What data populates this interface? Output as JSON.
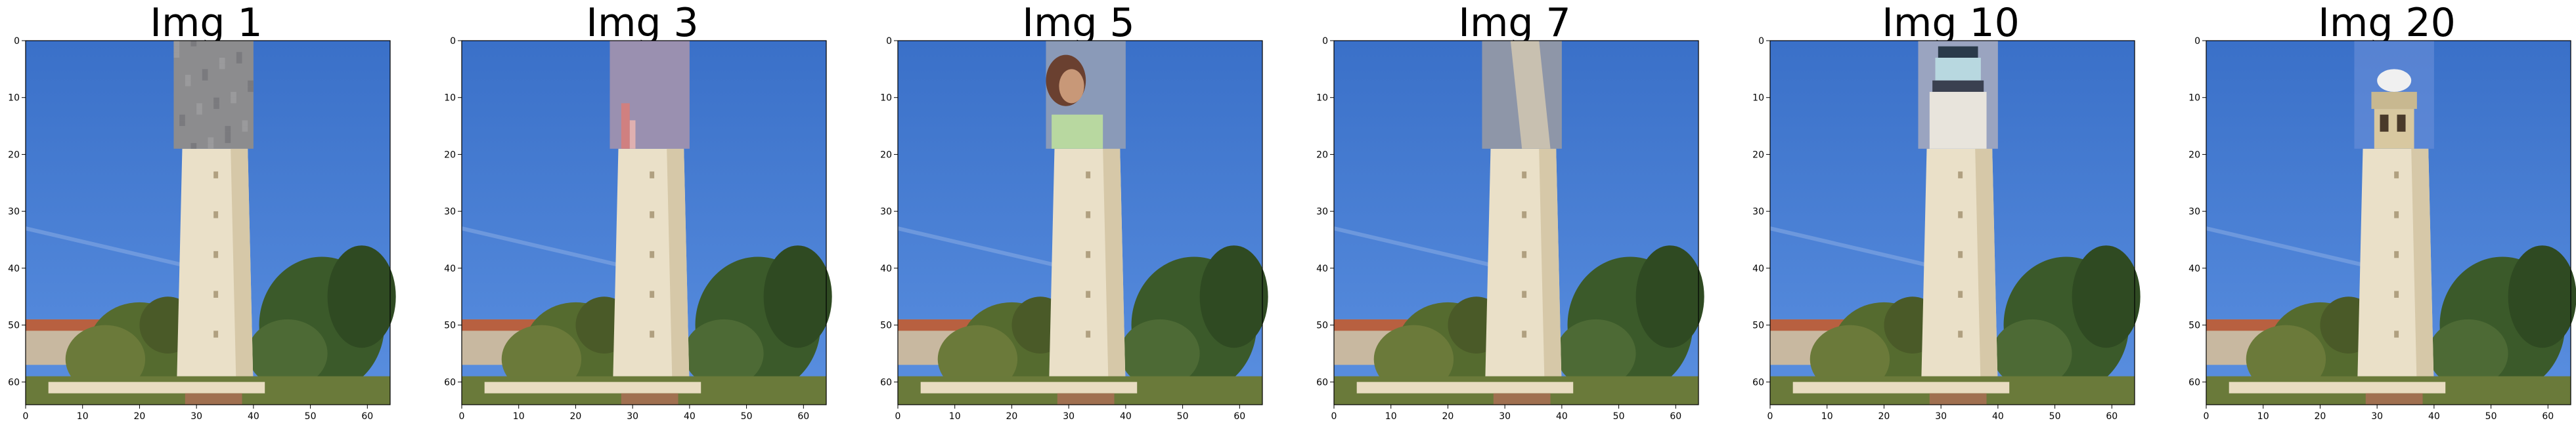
{
  "figure": {
    "panels": [
      {
        "title": "Img 1",
        "patch": "stone-texture-patch"
      },
      {
        "title": "Img 3",
        "patch": "purple-gray-patch-with-figure"
      },
      {
        "title": "Img 5",
        "patch": "person-portrait-patch"
      },
      {
        "title": "Img 7",
        "patch": "gray-stone-patch"
      },
      {
        "title": "Img 10",
        "patch": "lighthouse-lantern-patch"
      },
      {
        "title": "Img 20",
        "patch": "tower-top-patch"
      }
    ],
    "axis": {
      "x_ticks": [
        "0",
        "10",
        "20",
        "30",
        "40",
        "50",
        "60"
      ],
      "y_ticks": [
        "0",
        "10",
        "20",
        "30",
        "40",
        "50",
        "60"
      ]
    },
    "colors": {
      "sky_top": "#3a70c8",
      "sky_bottom": "#5a8fe0",
      "tower": "#eae0c8",
      "trees": "#3b5a2a",
      "ground": "#a07050"
    }
  }
}
